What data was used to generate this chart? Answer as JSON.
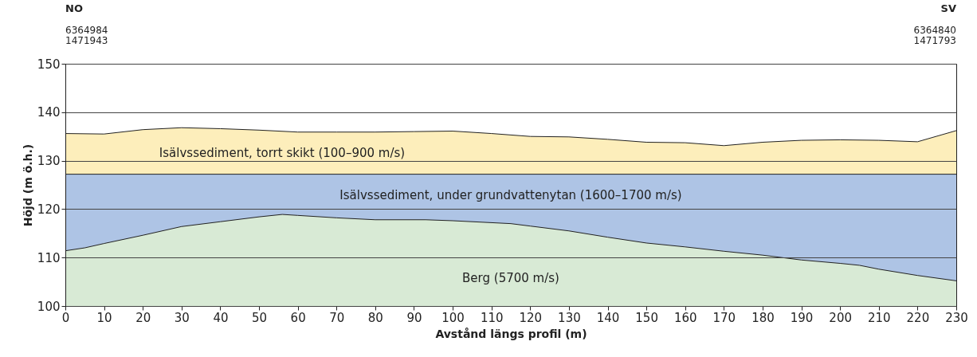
{
  "chart_data": {
    "type": "area",
    "xlabel": "Avstånd längs profil (m)",
    "ylabel": "Höjd (m ö.h.)",
    "xlim": [
      0,
      230
    ],
    "ylim": [
      100,
      150
    ],
    "xticks": [
      0,
      10,
      20,
      30,
      40,
      50,
      60,
      70,
      80,
      90,
      100,
      110,
      120,
      130,
      140,
      150,
      160,
      170,
      180,
      190,
      200,
      210,
      220,
      230
    ],
    "yticks": [
      100,
      110,
      120,
      130,
      140,
      150
    ],
    "grid": "y",
    "series": [
      {
        "color": "#fdeebb",
        "x": [
          0,
          10,
          20,
          30,
          40,
          50,
          60,
          70,
          80,
          90,
          100,
          110,
          120,
          130,
          140,
          150,
          160,
          170,
          180,
          190,
          200,
          210,
          220,
          230
        ],
        "values": [
          135.6,
          135.5,
          136.4,
          136.8,
          136.6,
          136.3,
          135.9,
          135.9,
          135.9,
          136.0,
          136.1,
          135.6,
          135.0,
          134.9,
          134.4,
          133.8,
          133.7,
          133.1,
          133.8,
          134.2,
          134.3,
          134.2,
          133.9,
          136.2
        ]
      },
      {
        "color": "#aec4e5",
        "x": [
          0,
          230
        ],
        "values": [
          127.2,
          127.2
        ]
      },
      {
        "color": "#d8ead5",
        "x": [
          0,
          5,
          10,
          20,
          30,
          40,
          50,
          56,
          60,
          70,
          80,
          93,
          100,
          115,
          120,
          130,
          140,
          150,
          160,
          170,
          180,
          190,
          200,
          205,
          210,
          220,
          230
        ],
        "values": [
          111.4,
          112.0,
          112.9,
          114.6,
          116.4,
          117.4,
          118.4,
          118.9,
          118.7,
          118.2,
          117.8,
          117.8,
          117.6,
          117.0,
          116.5,
          115.5,
          114.2,
          113.0,
          112.2,
          111.3,
          110.5,
          109.5,
          108.8,
          108.4,
          107.6,
          106.3,
          105.2
        ]
      }
    ],
    "annotations": [
      "Isälvssediment, torrt skikt (100–900 m/s)",
      "Isälvssediment, under grundvattenytan (1600–1700 m/s)",
      "Berg (5700 m/s)",
      "NO",
      "6364984",
      "1471943",
      "SV",
      "6364840",
      "1471793"
    ]
  }
}
